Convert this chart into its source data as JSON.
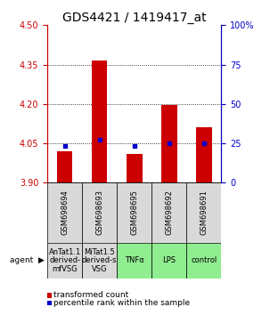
{
  "title": "GDS4421 / 1419417_at",
  "samples": [
    "GSM698694",
    "GSM698693",
    "GSM698695",
    "GSM698692",
    "GSM698691"
  ],
  "agents": [
    "AnTat1.1\nderived-\nmfVSG",
    "MiTat1.5\nderived-s\nVSG",
    "TNFα",
    "LPS",
    "control"
  ],
  "agent_colors": [
    "#d9d9d9",
    "#d9d9d9",
    "#90ee90",
    "#90ee90",
    "#90ee90"
  ],
  "bar_bottoms": [
    3.9,
    3.9,
    3.9,
    3.9,
    3.9
  ],
  "bar_tops": [
    4.02,
    4.365,
    4.01,
    4.195,
    4.11
  ],
  "percentile_values": [
    4.04,
    4.065,
    4.04,
    4.05,
    4.05
  ],
  "ylim_left": [
    3.9,
    4.5
  ],
  "ylim_right": [
    0,
    100
  ],
  "yticks_left": [
    3.9,
    4.05,
    4.2,
    4.35,
    4.5
  ],
  "yticks_right": [
    0,
    25,
    50,
    75,
    100
  ],
  "bar_color": "#cc0000",
  "percentile_color": "#0000cc",
  "bg_color": "#ffffff",
  "title_fontsize": 10,
  "tick_fontsize": 7,
  "legend_fontsize": 6.5,
  "sample_fontsize": 6,
  "agent_fontsize": 6
}
